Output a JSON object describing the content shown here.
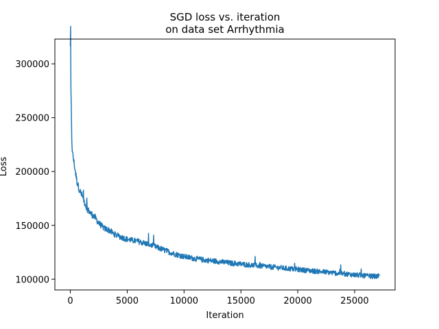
{
  "chart_data": {
    "type": "line",
    "title_lines": [
      "SGD loss vs. iteration",
      "on data set Arrhythmia"
    ],
    "xlabel": "Iteration",
    "ylabel": "Loss",
    "xlim": [
      -1360,
      28560
    ],
    "ylim": [
      90000,
      323000
    ],
    "xticks": [
      {
        "value": 0,
        "label": "0"
      },
      {
        "value": 5000,
        "label": "5000"
      },
      {
        "value": 10000,
        "label": "10000"
      },
      {
        "value": 15000,
        "label": "15000"
      },
      {
        "value": 20000,
        "label": "20000"
      },
      {
        "value": 25000,
        "label": "25000"
      }
    ],
    "yticks": [
      {
        "value": 100000,
        "label": "100000"
      },
      {
        "value": 150000,
        "label": "150000"
      },
      {
        "value": 200000,
        "label": "200000"
      },
      {
        "value": 250000,
        "label": "250000"
      },
      {
        "value": 300000,
        "label": "300000"
      }
    ],
    "grid": false,
    "legend": "none",
    "series": [
      {
        "color": "#1f77b4",
        "noise_amplitude": 1800,
        "x": [
          0,
          30,
          60,
          100,
          150,
          200,
          300,
          400,
          500,
          600,
          800,
          1000,
          1100,
          1300,
          1500,
          1800,
          2000,
          2200,
          2500,
          2800,
          3000,
          3300,
          3500,
          3700,
          4000,
          4500,
          5000,
          5500,
          6000,
          6500,
          7000,
          7500,
          8000,
          8500,
          9000,
          10000,
          11000,
          12000,
          13000,
          14000,
          15000,
          16000,
          17000,
          18000,
          19000,
          20000,
          21000,
          22000,
          23000,
          24000,
          25000,
          26000,
          27000,
          27200
        ],
        "y": [
          312000,
          290000,
          265000,
          240000,
          225000,
          216000,
          210000,
          203000,
          196000,
          190000,
          183000,
          178000,
          176000,
          170000,
          165000,
          161000,
          159000,
          157000,
          152000,
          149000,
          147000,
          146000,
          145000,
          143000,
          141000,
          139000,
          137000,
          136000,
          135000,
          133500,
          132000,
          130000,
          128000,
          126000,
          124000,
          121000,
          119000,
          117500,
          116500,
          115000,
          114000,
          113000,
          112000,
          111000,
          110000,
          109000,
          108000,
          107000,
          106000,
          105000,
          104000,
          103000,
          102500,
          103000
        ]
      }
    ]
  }
}
